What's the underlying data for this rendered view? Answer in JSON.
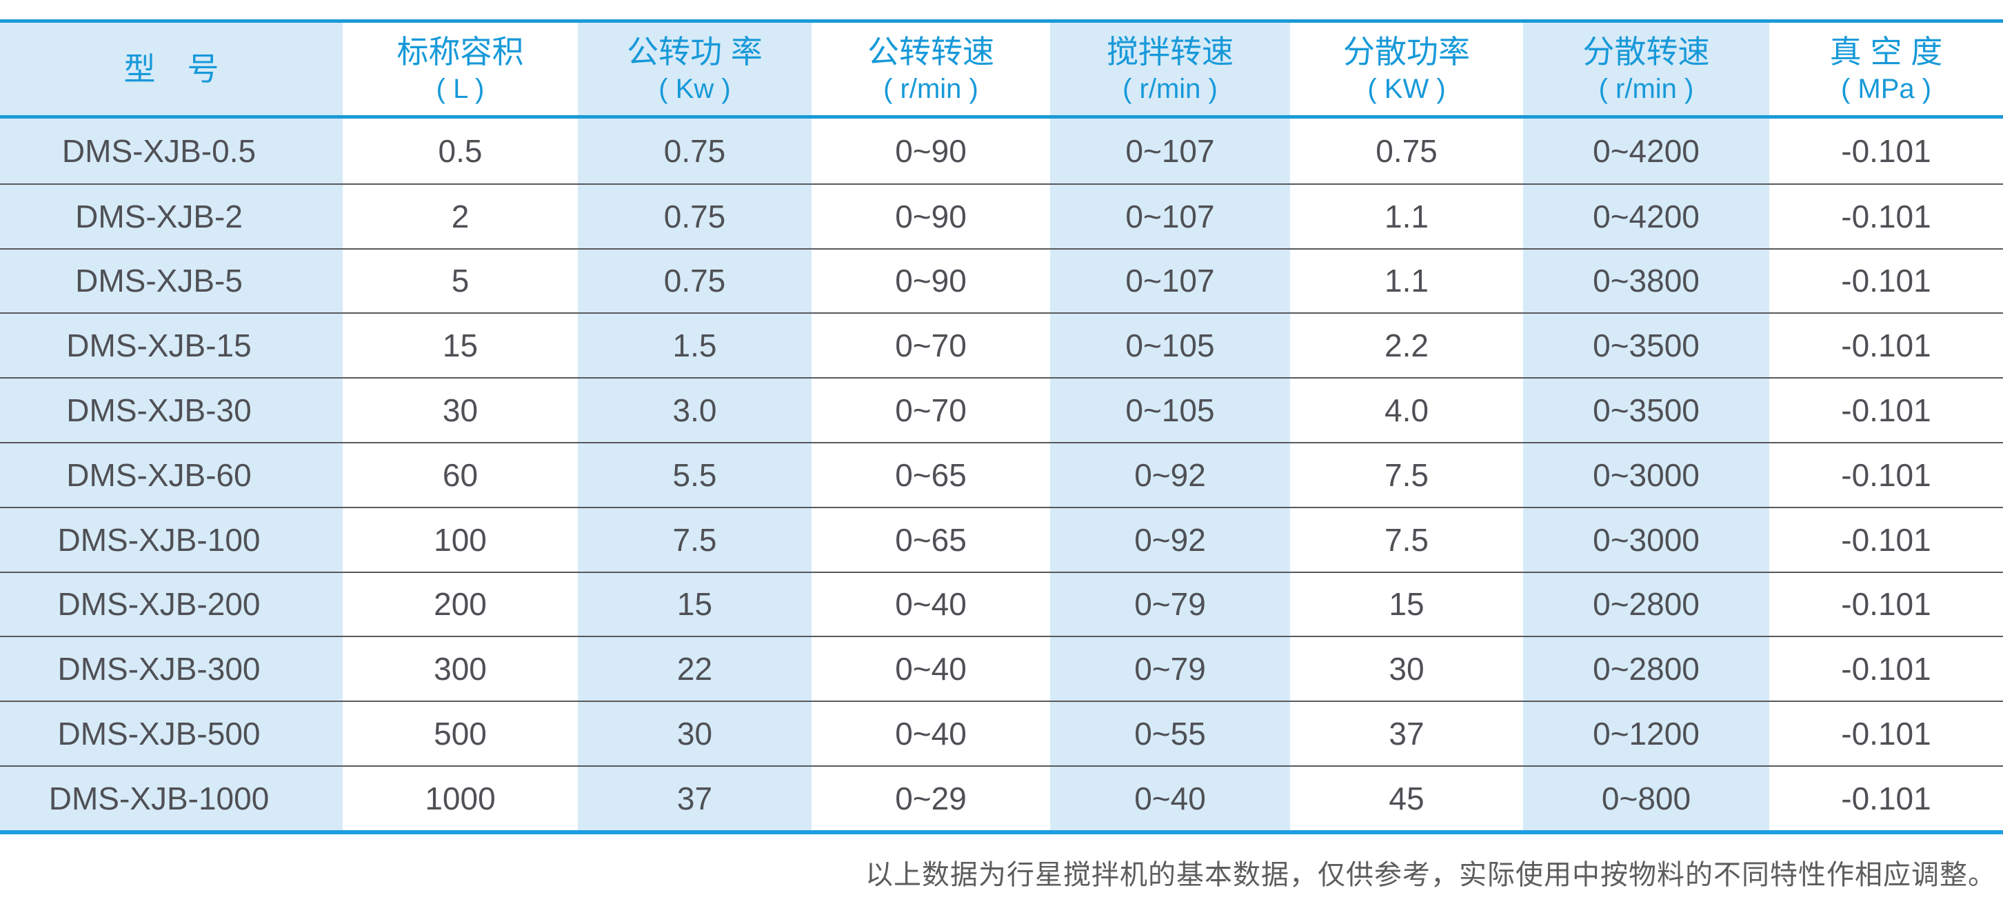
{
  "table": {
    "columns": [
      {
        "key": "model",
        "label": "型　号",
        "unit": ""
      },
      {
        "key": "volume",
        "label": "标称容积",
        "unit": "( L )"
      },
      {
        "key": "rev_power",
        "label": "公转功 率",
        "unit": "( Kw )"
      },
      {
        "key": "rev_speed",
        "label": "公转转速",
        "unit": "( r/min )"
      },
      {
        "key": "stir_speed",
        "label": "搅拌转速",
        "unit": "( r/min )"
      },
      {
        "key": "disp_power",
        "label": "分散功率",
        "unit": "( KW )"
      },
      {
        "key": "disp_speed",
        "label": "分散转速",
        "unit": "( r/min )"
      },
      {
        "key": "vacuum",
        "label": "真 空 度",
        "unit": "( MPa )"
      }
    ],
    "rows": [
      [
        "DMS-XJB-0.5",
        "0.5",
        "0.75",
        "0~90",
        "0~107",
        "0.75",
        "0~4200",
        "-0.101"
      ],
      [
        "DMS-XJB-2",
        "2",
        "0.75",
        "0~90",
        "0~107",
        "1.1",
        "0~4200",
        "-0.101"
      ],
      [
        "DMS-XJB-5",
        "5",
        "0.75",
        "0~90",
        "0~107",
        "1.1",
        "0~3800",
        "-0.101"
      ],
      [
        "DMS-XJB-15",
        "15",
        "1.5",
        "0~70",
        "0~105",
        "2.2",
        "0~3500",
        "-0.101"
      ],
      [
        "DMS-XJB-30",
        "30",
        "3.0",
        "0~70",
        "0~105",
        "4.0",
        "0~3500",
        "-0.101"
      ],
      [
        "DMS-XJB-60",
        "60",
        "5.5",
        "0~65",
        "0~92",
        "7.5",
        "0~3000",
        "-0.101"
      ],
      [
        "DMS-XJB-100",
        "100",
        "7.5",
        "0~65",
        "0~92",
        "7.5",
        "0~3000",
        "-0.101"
      ],
      [
        "DMS-XJB-200",
        "200",
        "15",
        "0~40",
        "0~79",
        "15",
        "0~2800",
        "-0.101"
      ],
      [
        "DMS-XJB-300",
        "300",
        "22",
        "0~40",
        "0~79",
        "30",
        "0~2800",
        "-0.101"
      ],
      [
        "DMS-XJB-500",
        "500",
        "30",
        "0~40",
        "0~55",
        "37",
        "0~1200",
        "-0.101"
      ],
      [
        "DMS-XJB-1000",
        "1000",
        "37",
        "0~29",
        "0~40",
        "45",
        "0~800",
        "-0.101"
      ]
    ]
  },
  "footer": {
    "note": "以上数据为行星搅拌机的基本数据，仅供参考，实际使用中按物料的不同特性作相应调整。"
  },
  "colors": {
    "accent_blue_line": "#1b9ad6",
    "bottom_blue_line": "#1d9de2",
    "header_text_blue": "#1799d9",
    "column_stripe_blue": "#d6eaf8",
    "row_separator_gray": "#58595b",
    "data_text_gray": "#4f5055",
    "footer_text_gray": "#5d5d5d"
  }
}
